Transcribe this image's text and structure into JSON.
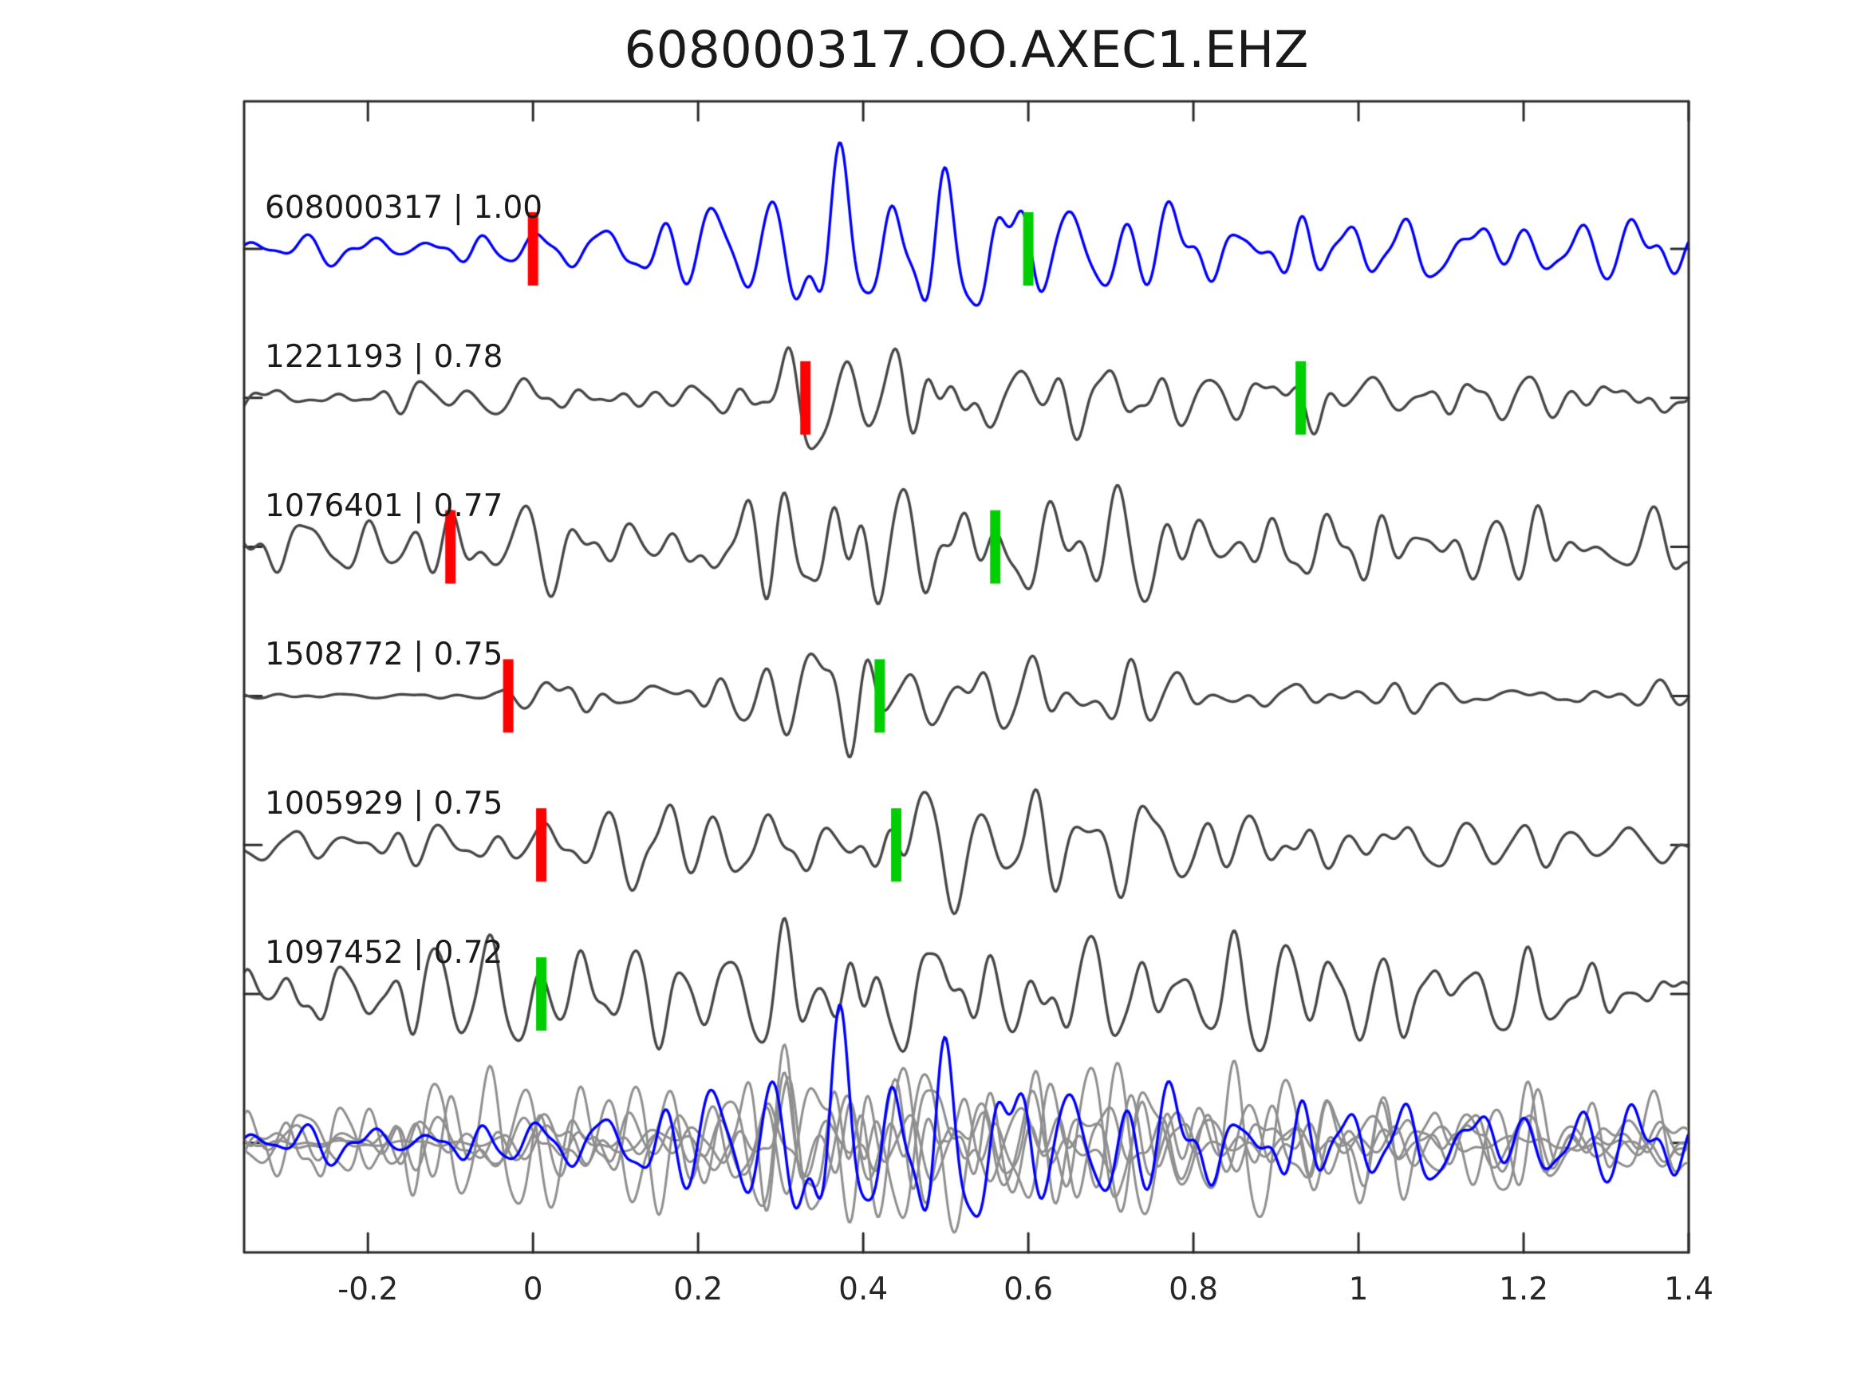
{
  "chart_data": {
    "type": "line",
    "title": "608000317.OO.AXEC1.EHZ",
    "xlabel": "",
    "ylabel": "",
    "x_range": [
      -0.35,
      1.4
    ],
    "x_ticks": [
      -0.2,
      0,
      0.2,
      0.4,
      0.6,
      0.8,
      1,
      1.2,
      1.4
    ],
    "x_tick_labels": [
      "-0.2",
      "0",
      "0.2",
      "0.4",
      "0.6",
      "0.8",
      "1",
      "1.2",
      "1.4"
    ],
    "grid": false,
    "legend": "none",
    "y_axis_labels_visible": false,
    "colors": {
      "template_trace": "#0000FF",
      "detection_trace": "#474747",
      "overlay_gray": "#8f8f8f",
      "red_pick": "#FF0000",
      "green_pick": "#00CE00",
      "spine": "#2b2b2b",
      "text": "#1a1a1a"
    },
    "rows": [
      {
        "id": "608000317",
        "correlation": 1.0,
        "label_display": "608000317 | 1.00",
        "role": "template",
        "color_key": "template_trace",
        "picks": [
          {
            "color": "red",
            "x": 0.0
          },
          {
            "color": "green",
            "x": 0.6
          }
        ],
        "waveform": {
          "seed": 7,
          "envelope": [
            [
              -0.35,
              0.16
            ],
            [
              0.0,
              0.18
            ],
            [
              0.1,
              0.3
            ],
            [
              0.28,
              0.6
            ],
            [
              0.36,
              1.0
            ],
            [
              0.5,
              0.95
            ],
            [
              0.63,
              0.8
            ],
            [
              0.75,
              0.55
            ],
            [
              0.9,
              0.5
            ],
            [
              1.1,
              0.42
            ],
            [
              1.4,
              0.3
            ]
          ]
        }
      },
      {
        "id": "1221193",
        "correlation": 0.78,
        "label_display": "1221193 | 0.78",
        "role": "detection",
        "color_key": "detection_trace",
        "picks": [
          {
            "color": "red",
            "x": 0.33
          },
          {
            "color": "green",
            "x": 0.93
          }
        ],
        "waveform": {
          "seed": 13,
          "envelope": [
            [
              -0.35,
              0.2
            ],
            [
              0.2,
              0.25
            ],
            [
              0.3,
              0.45
            ],
            [
              0.38,
              1.0
            ],
            [
              0.5,
              0.7
            ],
            [
              0.65,
              0.5
            ],
            [
              0.8,
              0.4
            ],
            [
              0.95,
              0.45
            ],
            [
              1.1,
              0.3
            ],
            [
              1.4,
              0.28
            ]
          ]
        }
      },
      {
        "id": "1076401",
        "correlation": 0.77,
        "label_display": "1076401 | 0.77",
        "role": "detection",
        "color_key": "detection_trace",
        "picks": [
          {
            "color": "red",
            "x": -0.1
          },
          {
            "color": "green",
            "x": 0.56
          }
        ],
        "waveform": {
          "seed": 21,
          "envelope": [
            [
              -0.35,
              0.3
            ],
            [
              -0.12,
              0.4
            ],
            [
              -0.06,
              0.6
            ],
            [
              0.05,
              0.5
            ],
            [
              0.3,
              0.65
            ],
            [
              0.37,
              1.0
            ],
            [
              0.5,
              0.8
            ],
            [
              0.65,
              0.65
            ],
            [
              0.8,
              0.55
            ],
            [
              1.0,
              0.45
            ],
            [
              1.2,
              0.5
            ],
            [
              1.4,
              0.5
            ]
          ]
        }
      },
      {
        "id": "1508772",
        "correlation": 0.75,
        "label_display": "1508772 | 0.75",
        "role": "detection",
        "color_key": "detection_trace",
        "picks": [
          {
            "color": "red",
            "x": -0.03
          },
          {
            "color": "green",
            "x": 0.42
          }
        ],
        "waveform": {
          "seed": 34,
          "envelope": [
            [
              -0.35,
              0.04
            ],
            [
              -0.04,
              0.05
            ],
            [
              0.02,
              0.3
            ],
            [
              0.12,
              0.28
            ],
            [
              0.3,
              0.5
            ],
            [
              0.36,
              1.0
            ],
            [
              0.46,
              0.65
            ],
            [
              0.6,
              0.5
            ],
            [
              0.75,
              0.45
            ],
            [
              0.9,
              0.22
            ],
            [
              1.1,
              0.18
            ],
            [
              1.4,
              0.16
            ]
          ]
        }
      },
      {
        "id": "1005929",
        "correlation": 0.75,
        "label_display": "1005929 | 0.75",
        "role": "detection",
        "color_key": "detection_trace",
        "picks": [
          {
            "color": "red",
            "x": 0.01
          },
          {
            "color": "green",
            "x": 0.44
          }
        ],
        "waveform": {
          "seed": 55,
          "envelope": [
            [
              -0.35,
              0.22
            ],
            [
              0.0,
              0.3
            ],
            [
              0.08,
              0.42
            ],
            [
              0.3,
              0.55
            ],
            [
              0.36,
              1.0
            ],
            [
              0.5,
              0.75
            ],
            [
              0.65,
              0.6
            ],
            [
              0.8,
              0.5
            ],
            [
              1.0,
              0.35
            ],
            [
              1.2,
              0.28
            ],
            [
              1.4,
              0.25
            ]
          ]
        }
      },
      {
        "id": "1097452",
        "correlation": 0.72,
        "label_display": "1097452 | 0.72",
        "role": "detection",
        "color_key": "detection_trace",
        "picks": [
          {
            "color": "green",
            "x": 0.01
          }
        ],
        "waveform": {
          "seed": 89,
          "envelope": [
            [
              -0.35,
              0.5
            ],
            [
              -0.15,
              0.6
            ],
            [
              0.0,
              0.5
            ],
            [
              0.25,
              0.55
            ],
            [
              0.36,
              1.0
            ],
            [
              0.46,
              0.85
            ],
            [
              0.6,
              0.65
            ],
            [
              0.8,
              0.6
            ],
            [
              1.0,
              0.55
            ],
            [
              1.2,
              0.5
            ],
            [
              1.4,
              0.45
            ]
          ]
        }
      }
    ],
    "overlay_row": {
      "description": "all detection traces overlaid in gray with blue template on top, aligned",
      "amplitude_boost": 1.3
    }
  }
}
